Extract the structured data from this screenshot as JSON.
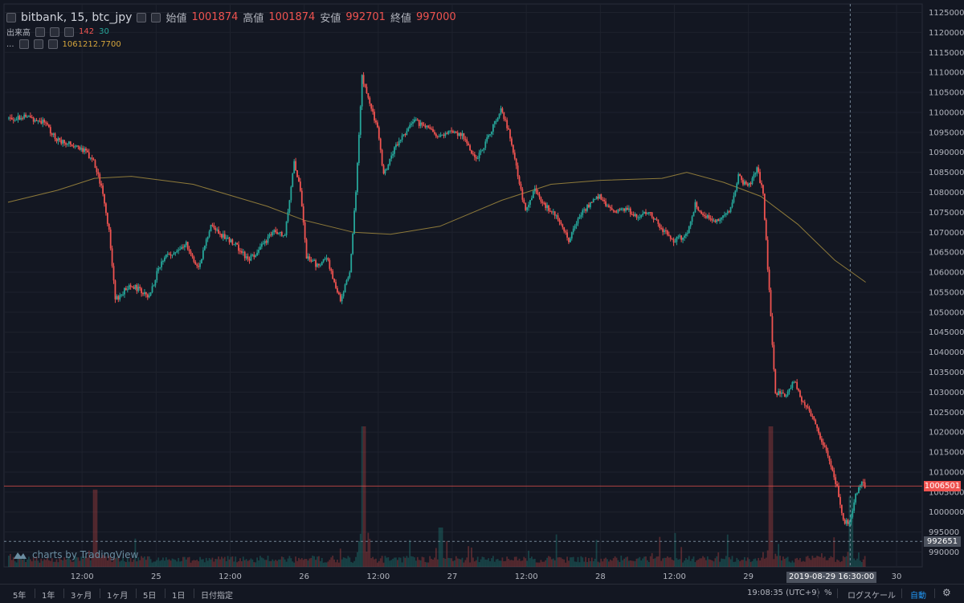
{
  "header": {
    "symbol": "bitbank, 15, btc_jpy",
    "open_label": "始値",
    "open": "1001874",
    "high_label": "高値",
    "high": "1001874",
    "low_label": "安値",
    "low": "992701",
    "close_label": "終値",
    "close": "997000"
  },
  "volume_legend": {
    "label": "出来高",
    "sell": "142",
    "buy": "30"
  },
  "ma_legend": {
    "label": "...",
    "value": "1061212.7700"
  },
  "price_axis": {
    "ticks": [
      "1125000",
      "1120000",
      "1115000",
      "1110000",
      "1105000",
      "1100000",
      "1095000",
      "1090000",
      "1085000",
      "1080000",
      "1075000",
      "1070000",
      "1065000",
      "1060000",
      "1055000",
      "1050000",
      "1045000",
      "1040000",
      "1035000",
      "1030000",
      "1025000",
      "1020000",
      "1015000",
      "1010000",
      "1005000",
      "1000000",
      "995000",
      "990000"
    ],
    "last_price": "1006501",
    "crosshair_price": "992651"
  },
  "time_axis": {
    "ticks": [
      "12:00",
      "25",
      "12:00",
      "26",
      "12:00",
      "27",
      "12:00",
      "28",
      "12:00",
      "29",
      "30"
    ],
    "crosshair_time": "2019-08-29 16:30:00"
  },
  "toolbar": {
    "ranges": [
      "5年",
      "1年",
      "3ヶ月",
      "1ヶ月",
      "5日",
      "1日",
      "日付指定"
    ],
    "clock": "19:08:35 (UTC+9)",
    "percent": "%",
    "log_scale": "ログスケール",
    "auto": "自動"
  },
  "watermark": "charts by TradingView",
  "colors": {
    "up": "#26a69a",
    "down": "#ef5350",
    "ma": "#8e7a3a",
    "background": "#131722"
  },
  "chart_data": {
    "type": "candlestick",
    "title": "bitbank, 15, btc_jpy",
    "ylim": [
      988000,
      1127000
    ],
    "x_ticks": [
      "12:00",
      "25",
      "12:00",
      "26",
      "12:00",
      "27",
      "12:00",
      "28",
      "12:00",
      "29",
      "30"
    ],
    "price_path": [
      {
        "x": "24 00:00",
        "y": 1098500
      },
      {
        "x": "24 03:00",
        "y": 1099000
      },
      {
        "x": "24 06:00",
        "y": 1097500
      },
      {
        "x": "24 08:00",
        "y": 1093000
      },
      {
        "x": "24 10:00",
        "y": 1092500
      },
      {
        "x": "24 12:00",
        "y": 1091000
      },
      {
        "x": "24 14:00",
        "y": 1088000
      },
      {
        "x": "24 15:30",
        "y": 1080000
      },
      {
        "x": "24 16:30",
        "y": 1070000
      },
      {
        "x": "24 17:30",
        "y": 1053000
      },
      {
        "x": "24 20:00",
        "y": 1057000
      },
      {
        "x": "24 23:00",
        "y": 1054000
      },
      {
        "x": "25 01:00",
        "y": 1063000
      },
      {
        "x": "25 03:00",
        "y": 1065000
      },
      {
        "x": "25 05:00",
        "y": 1067000
      },
      {
        "x": "25 07:00",
        "y": 1061000
      },
      {
        "x": "25 09:00",
        "y": 1072000
      },
      {
        "x": "25 11:00",
        "y": 1069000
      },
      {
        "x": "25 13:00",
        "y": 1067000
      },
      {
        "x": "25 15:00",
        "y": 1063000
      },
      {
        "x": "25 17:00",
        "y": 1066000
      },
      {
        "x": "25 19:00",
        "y": 1070000
      },
      {
        "x": "25 21:00",
        "y": 1069000
      },
      {
        "x": "25 22:30",
        "y": 1088000
      },
      {
        "x": "25 23:30",
        "y": 1080000
      },
      {
        "x": "26 00:30",
        "y": 1064000
      },
      {
        "x": "26 02:00",
        "y": 1062000
      },
      {
        "x": "26 04:00",
        "y": 1063000
      },
      {
        "x": "26 05:00",
        "y": 1057000
      },
      {
        "x": "26 06:00",
        "y": 1053000
      },
      {
        "x": "26 07:30",
        "y": 1060000
      },
      {
        "x": "26 08:30",
        "y": 1080000
      },
      {
        "x": "26 09:30",
        "y": 1109000
      },
      {
        "x": "26 10:30",
        "y": 1103000
      },
      {
        "x": "26 12:00",
        "y": 1096000
      },
      {
        "x": "26 13:00",
        "y": 1084000
      },
      {
        "x": "26 14:30",
        "y": 1090000
      },
      {
        "x": "26 16:00",
        "y": 1094000
      },
      {
        "x": "26 18:00",
        "y": 1098000
      },
      {
        "x": "26 20:00",
        "y": 1096000
      },
      {
        "x": "26 22:00",
        "y": 1094000
      },
      {
        "x": "27 00:00",
        "y": 1095000
      },
      {
        "x": "27 02:00",
        "y": 1094000
      },
      {
        "x": "27 04:00",
        "y": 1088000
      },
      {
        "x": "27 06:00",
        "y": 1094000
      },
      {
        "x": "27 08:00",
        "y": 1101000
      },
      {
        "x": "27 09:30",
        "y": 1094000
      },
      {
        "x": "27 11:00",
        "y": 1082000
      },
      {
        "x": "27 12:00",
        "y": 1075000
      },
      {
        "x": "27 13:30",
        "y": 1081000
      },
      {
        "x": "27 15:00",
        "y": 1077000
      },
      {
        "x": "27 17:00",
        "y": 1074000
      },
      {
        "x": "27 19:00",
        "y": 1068000
      },
      {
        "x": "27 21:00",
        "y": 1075000
      },
      {
        "x": "28 00:00",
        "y": 1079000
      },
      {
        "x": "28 02:00",
        "y": 1075000
      },
      {
        "x": "28 04:00",
        "y": 1076000
      },
      {
        "x": "28 06:00",
        "y": 1074000
      },
      {
        "x": "28 08:00",
        "y": 1075000
      },
      {
        "x": "28 10:00",
        "y": 1071000
      },
      {
        "x": "28 12:00",
        "y": 1068000
      },
      {
        "x": "28 14:00",
        "y": 1069000
      },
      {
        "x": "28 15:30",
        "y": 1077000
      },
      {
        "x": "28 17:00",
        "y": 1074000
      },
      {
        "x": "28 19:00",
        "y": 1073000
      },
      {
        "x": "28 21:00",
        "y": 1075000
      },
      {
        "x": "28 22:30",
        "y": 1084000
      },
      {
        "x": "29 00:00",
        "y": 1081000
      },
      {
        "x": "29 01:30",
        "y": 1086000
      },
      {
        "x": "29 02:30",
        "y": 1080000
      },
      {
        "x": "29 03:30",
        "y": 1055000
      },
      {
        "x": "29 04:30",
        "y": 1030000
      },
      {
        "x": "29 06:00",
        "y": 1029000
      },
      {
        "x": "29 07:30",
        "y": 1033000
      },
      {
        "x": "29 09:00",
        "y": 1027000
      },
      {
        "x": "29 10:30",
        "y": 1024000
      },
      {
        "x": "29 12:00",
        "y": 1018000
      },
      {
        "x": "29 13:30",
        "y": 1012000
      },
      {
        "x": "29 14:30",
        "y": 1006000
      },
      {
        "x": "29 15:30",
        "y": 998000
      },
      {
        "x": "29 16:30",
        "y": 997000
      },
      {
        "x": "29 17:30",
        "y": 1004000
      },
      {
        "x": "29 18:30",
        "y": 1008000
      },
      {
        "x": "29 19:00",
        "y": 1006501
      }
    ],
    "moving_average": [
      {
        "x": "24 00:00",
        "y": 1077500
      },
      {
        "x": "24 08:00",
        "y": 1080500
      },
      {
        "x": "24 14:00",
        "y": 1083500
      },
      {
        "x": "24 20:00",
        "y": 1084000
      },
      {
        "x": "25 06:00",
        "y": 1082000
      },
      {
        "x": "25 18:00",
        "y": 1076500
      },
      {
        "x": "26 00:00",
        "y": 1073000
      },
      {
        "x": "26 08:00",
        "y": 1070000
      },
      {
        "x": "26 14:00",
        "y": 1069500
      },
      {
        "x": "26 22:00",
        "y": 1071500
      },
      {
        "x": "27 08:00",
        "y": 1078000
      },
      {
        "x": "27 16:00",
        "y": 1082000
      },
      {
        "x": "28 00:00",
        "y": 1083000
      },
      {
        "x": "28 10:00",
        "y": 1083500
      },
      {
        "x": "28 14:00",
        "y": 1085000
      },
      {
        "x": "28 20:00",
        "y": 1082500
      },
      {
        "x": "29 02:00",
        "y": 1079000
      },
      {
        "x": "29 08:00",
        "y": 1072000
      },
      {
        "x": "29 14:00",
        "y": 1063000
      },
      {
        "x": "29 19:00",
        "y": 1057500
      }
    ],
    "last_price": 1006501,
    "volume_peaks": [
      {
        "x": "24 14:00",
        "v": 0.55
      },
      {
        "x": "26 09:30",
        "v": 1.0
      },
      {
        "x": "26 22:00",
        "v": 0.28
      },
      {
        "x": "29 03:30",
        "v": 1.0
      },
      {
        "x": "29 16:30",
        "v": 0.5
      }
    ]
  }
}
